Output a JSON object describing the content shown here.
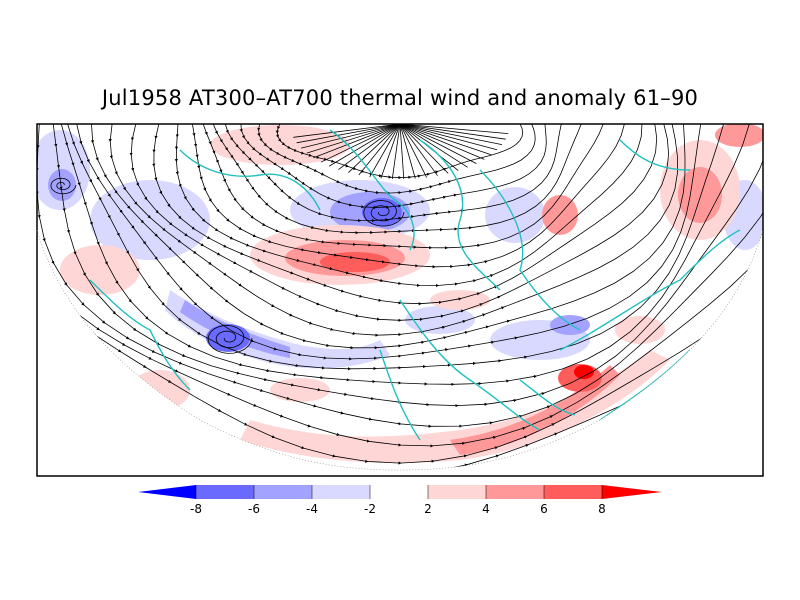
{
  "title": "Jul1958 AT300–AT700 thermal wind and anomaly 61–90",
  "colorbar": {
    "labels": [
      "-8",
      "-6",
      "-4",
      "-2",
      "2",
      "4",
      "6",
      "8"
    ],
    "colors": [
      "#0000ff",
      "#6a6aff",
      "#a3a3ff",
      "#d9d9ff",
      "#ffffff",
      "#ffd6d6",
      "#ff9999",
      "#ff5c5c",
      "#ff0000"
    ]
  },
  "map": {
    "projection": "north-polar-stereographic",
    "land_outline_color": "#20c0c0",
    "streamline_color": "#000000"
  }
}
